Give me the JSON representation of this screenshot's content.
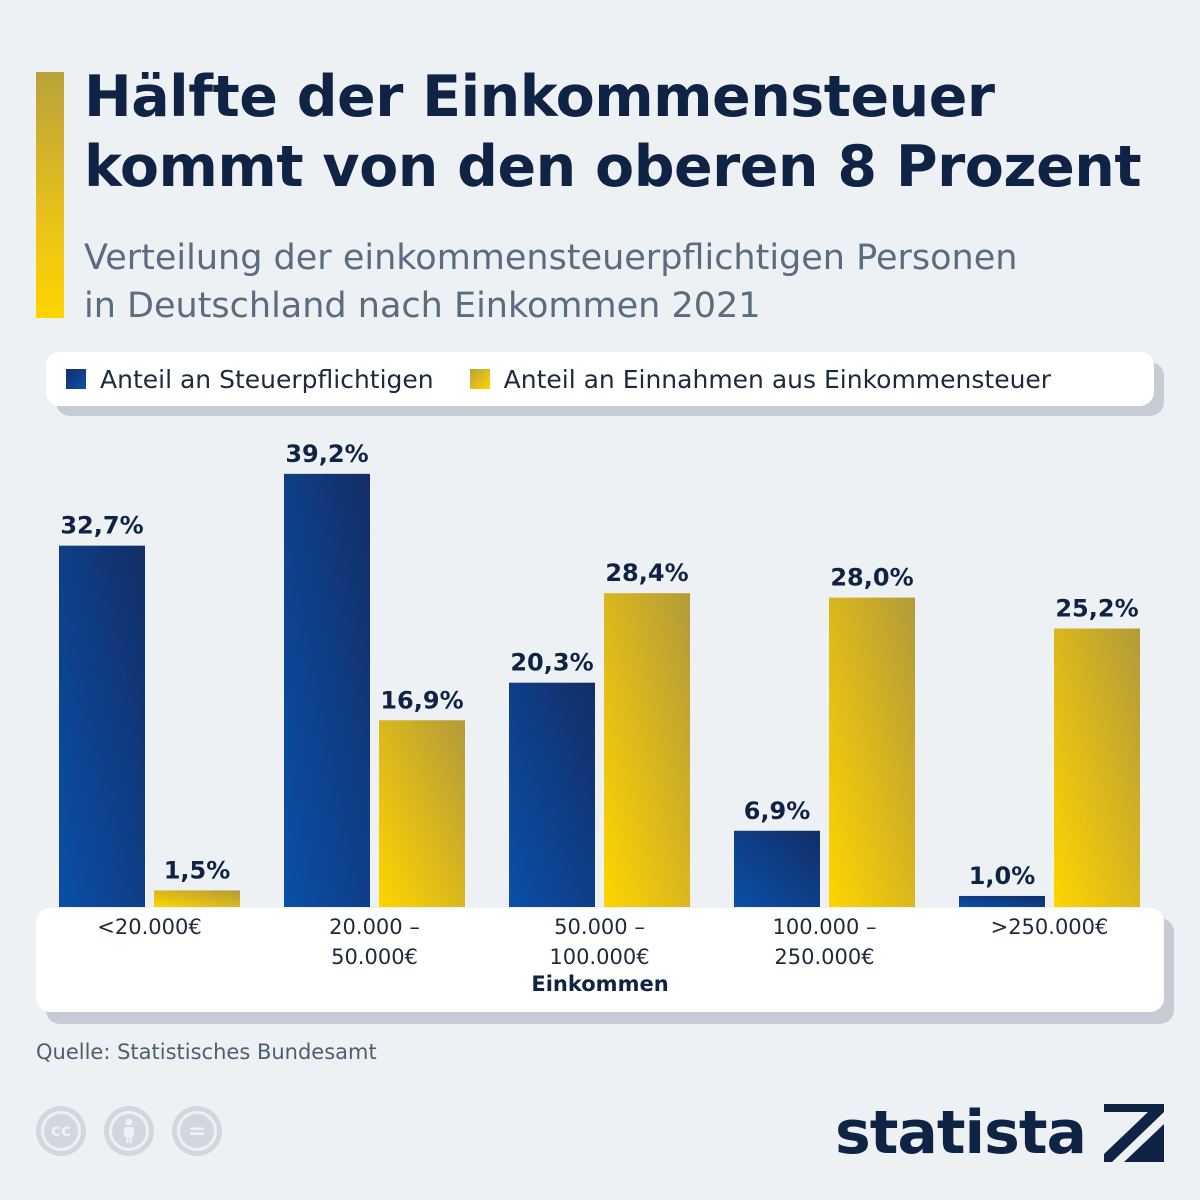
{
  "header": {
    "title_line1": "Hälfte der Einkommensteuer",
    "title_line2": "kommt von den oberen 8 Prozent",
    "subtitle_line1": "Verteilung der einkommensteuerpflichtigen Personen",
    "subtitle_line2": "in Deutschland nach Einkommen 2021"
  },
  "legend": {
    "item1": "Anteil an Steuerpflichtigen",
    "item2": "Anteil an Einnahmen aus Einkommensteuer"
  },
  "colors": {
    "series1": "#0a3a84",
    "series2": "#e6be1a",
    "title": "#0f2344"
  },
  "chart_data": {
    "type": "bar",
    "categories": [
      "<20.000€",
      "20.000 –\n50.000€",
      "50.000 –\n100.000€",
      "100.000 –\n250.000€",
      ">250.000€"
    ],
    "series": [
      {
        "name": "Anteil an Steuerpflichtigen",
        "values": [
          32.7,
          39.2,
          20.3,
          6.9,
          1.0
        ],
        "labels": [
          "32,7%",
          "39,2%",
          "20,3%",
          "6,9%",
          "1,0%"
        ]
      },
      {
        "name": "Anteil an Einnahmen aus Einkommensteuer",
        "values": [
          1.5,
          16.9,
          28.4,
          28.0,
          25.2
        ],
        "labels": [
          "1,5%",
          "16,9%",
          "28,4%",
          "28,0%",
          "25,2%"
        ]
      }
    ],
    "xlabel": "Einkommen",
    "ylabel": "",
    "ylim": [
      0,
      40
    ],
    "grid": false,
    "legend_position": "top"
  },
  "footer": {
    "source": "Quelle: Statistisches Bundesamt",
    "brand": "statista",
    "license_icons": [
      "cc-icon",
      "attribution-icon",
      "no-derivatives-icon"
    ],
    "cc_text": "cc",
    "nd_text": "="
  }
}
